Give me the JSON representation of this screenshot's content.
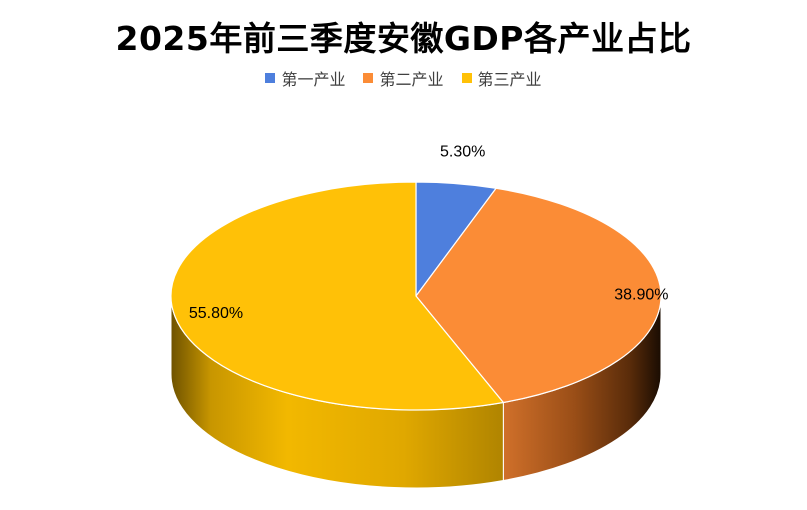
{
  "chart_data": {
    "type": "pie",
    "title": "2025年前三季度安徽GDP各产业占比",
    "legend_position": "top",
    "style": "3d",
    "slices": [
      {
        "name": "第一产业",
        "value": 5.3,
        "label": "5.30%",
        "color": "#4E7FDD"
      },
      {
        "name": "第二产业",
        "value": 38.9,
        "label": "38.90%",
        "color": "#FB8C36"
      },
      {
        "name": "第三产业",
        "value": 55.8,
        "label": "55.80%",
        "color": "#FFC107"
      }
    ]
  }
}
